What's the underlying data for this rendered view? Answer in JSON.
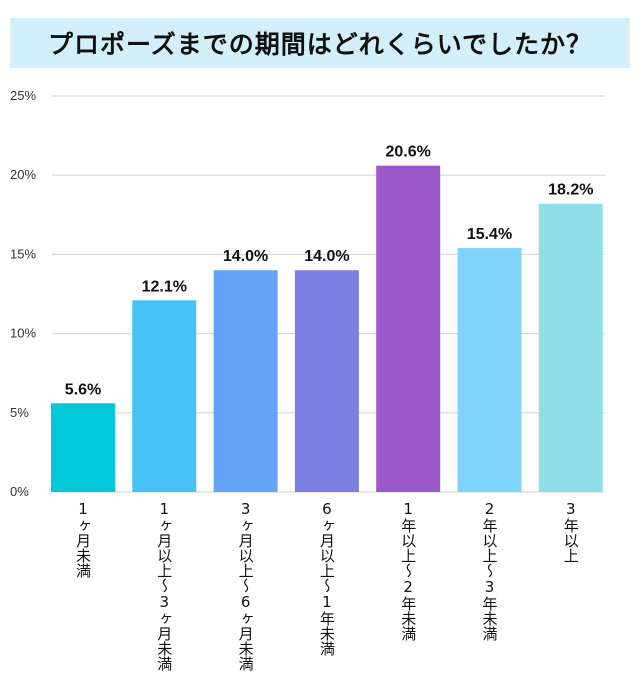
{
  "chart_data": {
    "type": "bar",
    "title": "プロポーズまでの期間はどれくらいでしたか？",
    "categories": [
      "1ヶ月未満",
      "1ヶ月以上～3ヶ月未満",
      "3ヶ月以上～6ヶ月未満",
      "6ヶ月以上～1年未満",
      "1年以上～2年未満",
      "2年以上～3年未満",
      "3年以上"
    ],
    "values": [
      5.6,
      12.1,
      14.0,
      14.0,
      20.6,
      15.4,
      18.2
    ],
    "data_labels": [
      "5.6%",
      "12.1%",
      "14.0%",
      "14.0%",
      "20.6%",
      "15.4%",
      "18.2%"
    ],
    "colors": [
      "#00c8d8",
      "#46c2f7",
      "#63a4f6",
      "#7e7fe2",
      "#9a58c9",
      "#7fd4fb",
      "#8fdfe8"
    ],
    "yticks": [
      0,
      5,
      10,
      15,
      20,
      25
    ],
    "ytick_labels": [
      "0%",
      "5%",
      "10%",
      "15%",
      "20%",
      "25%"
    ],
    "ylim": [
      0,
      25
    ],
    "grid": true,
    "xlabel": "",
    "ylabel": ""
  }
}
